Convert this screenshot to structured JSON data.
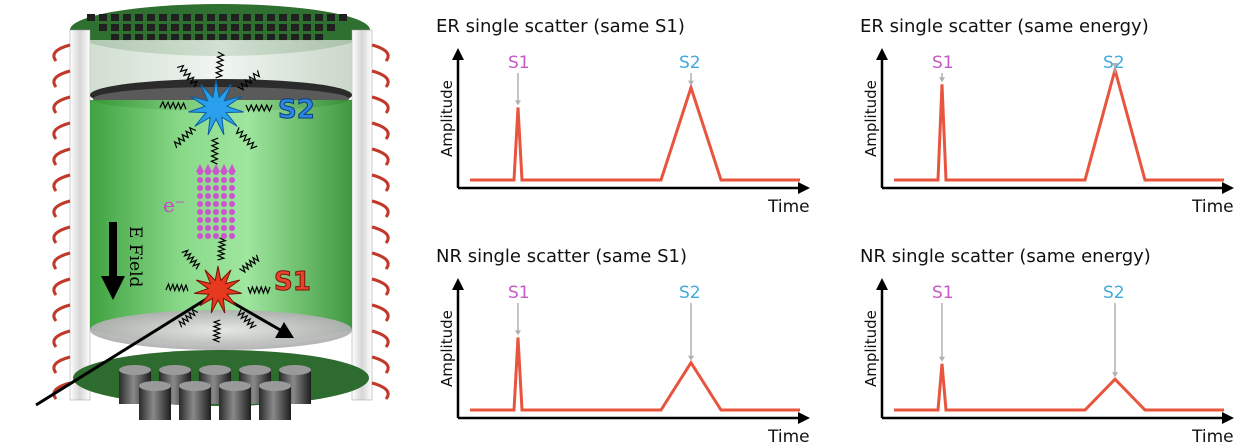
{
  "colors": {
    "trace": "#e8553f",
    "s1": "#c659c6",
    "s2": "#3fa9df",
    "pointer": "#b0b0b0"
  },
  "detector": {
    "s2_label": "S2",
    "s1_label": "S1",
    "electron_label": "e⁻",
    "field_label": "E Field"
  },
  "chart_data": [
    {
      "type": "line",
      "title": "ER single scatter (same S1)",
      "ylabel": "Amplitude",
      "xlabel": "Time",
      "peak_labels": [
        "S1",
        "S2"
      ],
      "s1_height": 0.66,
      "s2_height": 0.84
    },
    {
      "type": "line",
      "title": "ER single scatter (same energy)",
      "ylabel": "Amplitude",
      "xlabel": "Time",
      "peak_labels": [
        "S1",
        "S2"
      ],
      "s1_height": 0.87,
      "s2_height": 1.0
    },
    {
      "type": "line",
      "title": "NR single scatter  (same S1)",
      "ylabel": "Amplitude",
      "xlabel": "Time",
      "peak_labels": [
        "S1",
        "S2"
      ],
      "s1_height": 0.66,
      "s2_height": 0.43
    },
    {
      "type": "line",
      "title": "NR single scatter (same energy)",
      "ylabel": "Amplitude",
      "xlabel": "Time",
      "peak_labels": [
        "S1",
        "S2"
      ],
      "s1_height": 0.42,
      "s2_height": 0.28
    }
  ]
}
